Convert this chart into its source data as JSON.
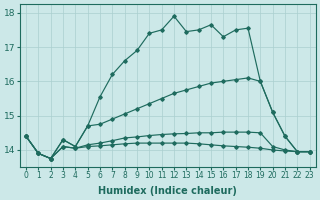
{
  "xlabel": "Humidex (Indice chaleur)",
  "xlim": [
    -0.5,
    23.5
  ],
  "ylim": [
    13.5,
    18.25
  ],
  "yticks": [
    14,
    15,
    16,
    17,
    18
  ],
  "xticks": [
    0,
    1,
    2,
    3,
    4,
    5,
    6,
    7,
    8,
    9,
    10,
    11,
    12,
    13,
    14,
    15,
    16,
    17,
    18,
    19,
    20,
    21,
    22,
    23
  ],
  "bg_color": "#cce8e8",
  "grid_color": "#aacfcf",
  "line_color": "#1e6b5e",
  "lines": [
    [
      14.4,
      13.9,
      13.75,
      14.3,
      14.1,
      14.7,
      15.55,
      16.2,
      16.6,
      16.9,
      17.4,
      17.5,
      17.9,
      17.45,
      17.5,
      17.65,
      17.3,
      17.5,
      17.55,
      16.0,
      15.1,
      14.4,
      13.95,
      13.95
    ],
    [
      14.4,
      13.9,
      13.75,
      14.3,
      14.1,
      14.7,
      14.75,
      14.9,
      15.05,
      15.2,
      15.35,
      15.5,
      15.65,
      15.75,
      15.85,
      15.95,
      16.0,
      16.05,
      16.1,
      16.0,
      15.1,
      14.4,
      13.95,
      13.95
    ],
    [
      14.4,
      13.9,
      13.75,
      14.1,
      14.05,
      14.15,
      14.2,
      14.27,
      14.35,
      14.38,
      14.42,
      14.45,
      14.47,
      14.48,
      14.5,
      14.5,
      14.52,
      14.52,
      14.52,
      14.5,
      14.1,
      14.0,
      13.95,
      13.95
    ],
    [
      14.4,
      13.9,
      13.75,
      14.1,
      14.05,
      14.1,
      14.12,
      14.15,
      14.18,
      14.2,
      14.2,
      14.2,
      14.2,
      14.2,
      14.18,
      14.15,
      14.12,
      14.1,
      14.08,
      14.05,
      14.0,
      13.97,
      13.95,
      13.95
    ]
  ]
}
